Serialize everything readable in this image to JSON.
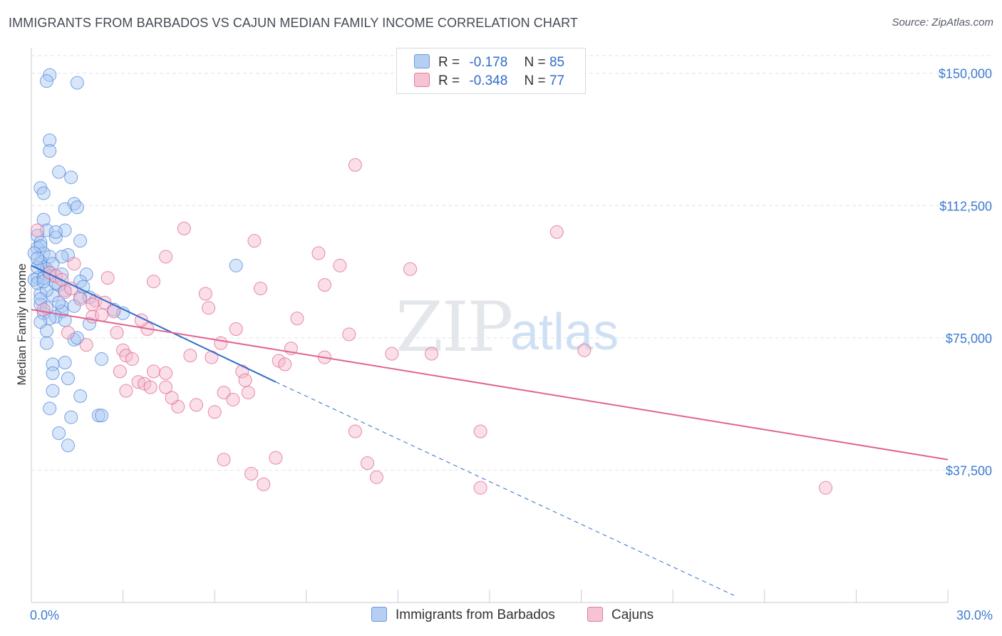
{
  "title": "IMMIGRANTS FROM BARBADOS VS CAJUN MEDIAN FAMILY INCOME CORRELATION CHART",
  "source": "Source: ZipAtlas.com",
  "watermark": {
    "zip": "ZIP",
    "atlas": "atlas"
  },
  "colors": {
    "blue": "#4f86d9",
    "blue_fill": "#a9c7f2",
    "blue_line": "#2f6ccc",
    "pink": "#e0648f",
    "pink_fill": "#f4b9cb",
    "pink_line": "#e0648f",
    "grid": "#dfe2e7",
    "tick_text": "#3d7bd1"
  },
  "legend": {
    "rows": [
      {
        "r_label": "R =",
        "r_value": "-0.178",
        "n_label": "N =",
        "n_value": "85"
      },
      {
        "r_label": "R =",
        "r_value": "-0.348",
        "n_label": "N =",
        "n_value": "77"
      }
    ]
  },
  "bottom_legend": [
    "Immigrants from Barbados",
    "Cajuns"
  ],
  "chart_data": {
    "type": "scatter",
    "xlabel": "",
    "ylabel": "Median Family Income",
    "xlim": [
      0,
      30
    ],
    "ylim": [
      0,
      155000
    ],
    "x_tick_labels": [
      "0.0%",
      "30.0%"
    ],
    "y_ticks": [
      37500,
      75000,
      112500,
      150000
    ],
    "y_tick_labels": [
      "$37,500",
      "$75,000",
      "$112,500",
      "$150,000"
    ],
    "grid": true,
    "legend_position": "top-center",
    "series": [
      {
        "name": "Immigrants from Barbados",
        "color": "#4f86d9",
        "trend": {
          "x": [
            0,
            8.0
          ],
          "y": [
            95500,
            62500
          ],
          "dashed_to": [
            23.0,
            2000
          ]
        },
        "points": [
          [
            0.6,
            149500
          ],
          [
            0.5,
            147800
          ],
          [
            1.5,
            147300
          ],
          [
            0.6,
            131000
          ],
          [
            0.6,
            128000
          ],
          [
            0.9,
            122000
          ],
          [
            1.3,
            120500
          ],
          [
            0.3,
            117500
          ],
          [
            0.4,
            116000
          ],
          [
            1.4,
            113000
          ],
          [
            1.5,
            112000
          ],
          [
            1.1,
            111500
          ],
          [
            0.4,
            108500
          ],
          [
            0.5,
            105500
          ],
          [
            1.1,
            105500
          ],
          [
            0.2,
            104000
          ],
          [
            0.8,
            103500
          ],
          [
            1.6,
            102500
          ],
          [
            0.3,
            102000
          ],
          [
            0.2,
            100500
          ],
          [
            0.4,
            99000
          ],
          [
            1.2,
            98500
          ],
          [
            1.0,
            98000
          ],
          [
            0.6,
            98000
          ],
          [
            0.3,
            96500
          ],
          [
            0.4,
            95000
          ],
          [
            0.5,
            94500
          ],
          [
            1.8,
            93000
          ],
          [
            0.6,
            92500
          ],
          [
            0.2,
            92000
          ],
          [
            0.1,
            91500
          ],
          [
            1.6,
            91000
          ],
          [
            0.9,
            90000
          ],
          [
            1.1,
            88500
          ],
          [
            0.3,
            87500
          ],
          [
            0.7,
            87000
          ],
          [
            1.6,
            86500
          ],
          [
            1.0,
            84000
          ],
          [
            2.7,
            83000
          ],
          [
            0.3,
            84500
          ],
          [
            1.0,
            82500
          ],
          [
            0.4,
            82000
          ],
          [
            0.8,
            81000
          ],
          [
            0.6,
            80500
          ],
          [
            0.3,
            79500
          ],
          [
            0.5,
            77000
          ],
          [
            1.4,
            74500
          ],
          [
            0.5,
            73500
          ],
          [
            2.3,
            69000
          ],
          [
            1.1,
            68000
          ],
          [
            0.7,
            67500
          ],
          [
            0.7,
            65000
          ],
          [
            1.2,
            63500
          ],
          [
            0.7,
            60000
          ],
          [
            1.6,
            58500
          ],
          [
            0.6,
            55000
          ],
          [
            2.2,
            53000
          ],
          [
            2.3,
            53000
          ],
          [
            1.3,
            52500
          ],
          [
            0.9,
            48000
          ],
          [
            1.2,
            44500
          ],
          [
            6.7,
            95500
          ],
          [
            0.2,
            90500
          ],
          [
            1.0,
            93000
          ],
          [
            1.9,
            86500
          ],
          [
            3.0,
            82000
          ],
          [
            0.2,
            95000
          ],
          [
            0.4,
            92000
          ],
          [
            0.5,
            88500
          ],
          [
            0.9,
            85000
          ],
          [
            1.4,
            84000
          ],
          [
            0.3,
            101000
          ],
          [
            0.7,
            96000
          ],
          [
            0.1,
            99000
          ],
          [
            1.9,
            79000
          ],
          [
            0.8,
            105000
          ],
          [
            0.2,
            97500
          ],
          [
            1.5,
            75000
          ],
          [
            0.4,
            91000
          ],
          [
            0.6,
            93500
          ],
          [
            1.7,
            89500
          ],
          [
            0.3,
            86000
          ],
          [
            1.1,
            80000
          ],
          [
            0.5,
            83500
          ],
          [
            0.8,
            90500
          ]
        ]
      },
      {
        "name": "Cajuns",
        "color": "#e0648f",
        "trend": {
          "x": [
            0,
            30
          ],
          "y": [
            83000,
            40500
          ]
        },
        "points": [
          [
            0.2,
            105500
          ],
          [
            0.6,
            93500
          ],
          [
            1.4,
            96000
          ],
          [
            1.1,
            88000
          ],
          [
            1.3,
            89000
          ],
          [
            2.1,
            85500
          ],
          [
            2.5,
            92000
          ],
          [
            2.4,
            85000
          ],
          [
            2.7,
            82500
          ],
          [
            2.8,
            76500
          ],
          [
            3.0,
            71500
          ],
          [
            3.1,
            70000
          ],
          [
            3.3,
            69000
          ],
          [
            2.9,
            65500
          ],
          [
            3.5,
            62500
          ],
          [
            3.1,
            60000
          ],
          [
            3.7,
            62000
          ],
          [
            3.9,
            61000
          ],
          [
            3.8,
            77500
          ],
          [
            4.0,
            91000
          ],
          [
            4.0,
            65500
          ],
          [
            4.4,
            61000
          ],
          [
            4.4,
            65000
          ],
          [
            4.4,
            98000
          ],
          [
            4.8,
            55500
          ],
          [
            5.0,
            106000
          ],
          [
            5.2,
            70000
          ],
          [
            5.4,
            56000
          ],
          [
            5.7,
            87500
          ],
          [
            5.8,
            83500
          ],
          [
            5.9,
            69500
          ],
          [
            6.0,
            54000
          ],
          [
            6.2,
            73500
          ],
          [
            6.3,
            59500
          ],
          [
            6.6,
            57500
          ],
          [
            6.7,
            77500
          ],
          [
            6.9,
            65500
          ],
          [
            7.1,
            59500
          ],
          [
            7.2,
            36500
          ],
          [
            7.3,
            102500
          ],
          [
            7.5,
            89000
          ],
          [
            7.6,
            33500
          ],
          [
            8.1,
            68500
          ],
          [
            8.3,
            67500
          ],
          [
            8.5,
            72000
          ],
          [
            8.7,
            80500
          ],
          [
            9.6,
            69500
          ],
          [
            9.4,
            99000
          ],
          [
            9.6,
            90000
          ],
          [
            10.1,
            95500
          ],
          [
            10.4,
            76000
          ],
          [
            10.6,
            48500
          ],
          [
            10.6,
            124000
          ],
          [
            11.0,
            39500
          ],
          [
            11.3,
            35500
          ],
          [
            11.8,
            70500
          ],
          [
            12.4,
            94500
          ],
          [
            13.1,
            70500
          ],
          [
            14.7,
            48500
          ],
          [
            14.7,
            32500
          ],
          [
            17.2,
            105000
          ],
          [
            18.1,
            71500
          ],
          [
            26.0,
            32500
          ],
          [
            1.6,
            86000
          ],
          [
            2.0,
            81000
          ],
          [
            1.8,
            73000
          ],
          [
            0.8,
            92500
          ],
          [
            1.2,
            76500
          ],
          [
            2.3,
            81500
          ],
          [
            0.4,
            83000
          ],
          [
            1.0,
            91500
          ],
          [
            2.0,
            84500
          ],
          [
            3.6,
            80000
          ],
          [
            6.3,
            40500
          ],
          [
            7.0,
            63000
          ],
          [
            8.0,
            41000
          ],
          [
            4.6,
            58000
          ]
        ]
      }
    ]
  }
}
